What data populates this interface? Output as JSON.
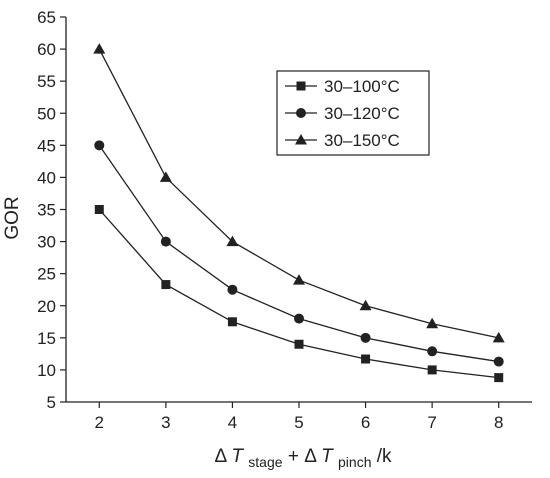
{
  "chart_data": {
    "type": "line",
    "x": [
      2,
      3,
      4,
      5,
      6,
      7,
      8
    ],
    "series": [
      {
        "name": "30–100°C",
        "marker": "square",
        "values": [
          35,
          23.3,
          17.5,
          14,
          11.7,
          10,
          8.8
        ]
      },
      {
        "name": "30–120°C",
        "marker": "circle",
        "values": [
          45,
          30,
          22.5,
          18,
          15,
          12.9,
          11.3
        ]
      },
      {
        "name": "30–150°C",
        "marker": "triangle",
        "values": [
          60,
          40,
          30,
          24,
          20,
          17.2,
          15
        ]
      }
    ],
    "xlim": [
      1.5,
      8.5
    ],
    "ylim": [
      5,
      65
    ],
    "xticks": [
      2,
      3,
      4,
      5,
      6,
      7,
      8
    ],
    "yticks": [
      5,
      10,
      15,
      20,
      25,
      30,
      35,
      40,
      45,
      50,
      55,
      60,
      65
    ],
    "ylabel": "GOR",
    "xlabel": {
      "delta1": "Δ",
      "var1": "T",
      "sub1": "stage",
      "plus": " + ",
      "delta2": "Δ",
      "var2": "T",
      "sub2": "pinch",
      "suffix": "/k"
    },
    "legend_position": "top-right",
    "grid": false,
    "line_color": "#222222"
  }
}
